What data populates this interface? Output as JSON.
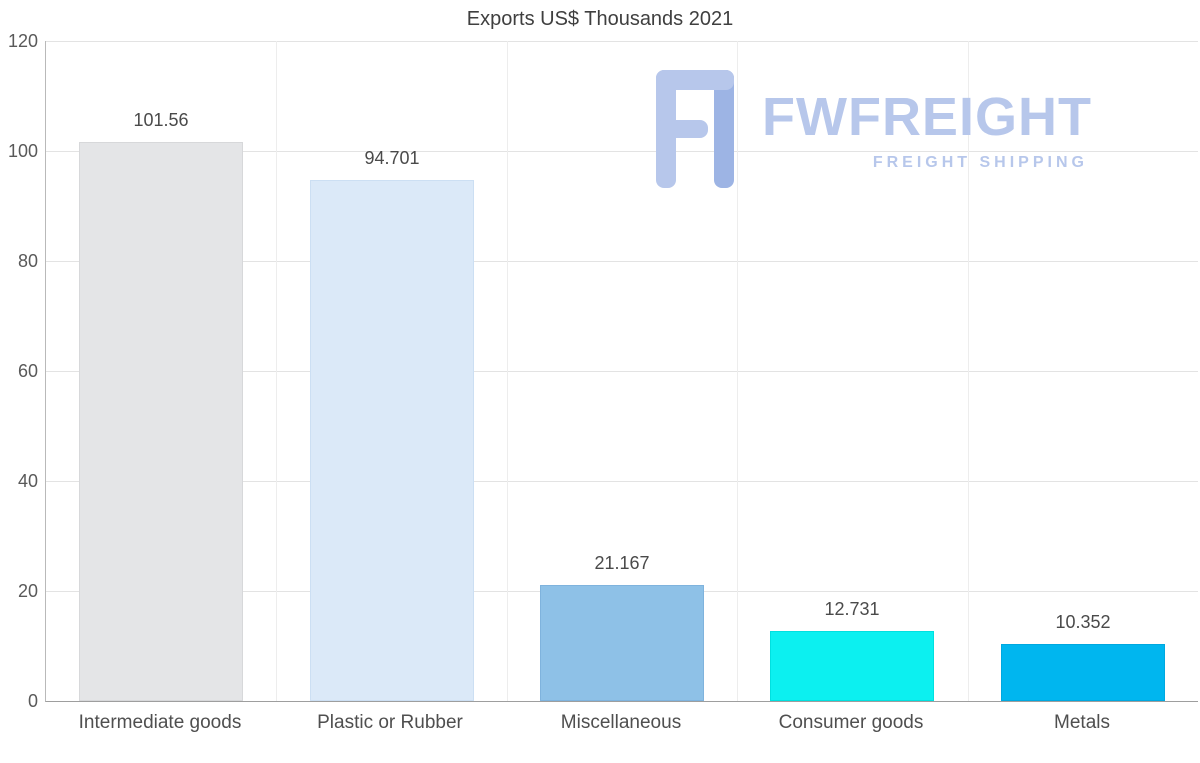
{
  "title": "Exports US$ Thousands 2021",
  "watermark": {
    "brand": "FWFREIGHT",
    "tagline": "FREIGHT SHIPPING",
    "color": "#b7c7eb",
    "logo_color_light": "#b7c7eb",
    "logo_color_dark": "#9db4e4"
  },
  "chart_data": {
    "type": "bar",
    "title": "Exports US$ Thousands 2021",
    "categories": [
      "Intermediate goods",
      "Plastic or Rubber",
      "Miscellaneous",
      "Consumer goods",
      "Metals"
    ],
    "values": [
      101.56,
      94.701,
      21.167,
      12.731,
      10.352
    ],
    "value_labels": [
      "101.56",
      "94.701",
      "21.167",
      "12.731",
      "10.352"
    ],
    "bar_colors": [
      "#e4e5e7",
      "#dbe9f8",
      "#8ec1e7",
      "#0cf0f0",
      "#00b6ef"
    ],
    "bar_border_colors": [
      "#d7d8da",
      "#ccdff3",
      "#7fb3dd",
      "#00e0e0",
      "#00a8e0"
    ],
    "xlabel": "",
    "ylabel": "",
    "ylim": [
      0,
      120
    ],
    "yticks": [
      0,
      20,
      40,
      60,
      80,
      100,
      120
    ],
    "grid": true,
    "legend": false
  }
}
